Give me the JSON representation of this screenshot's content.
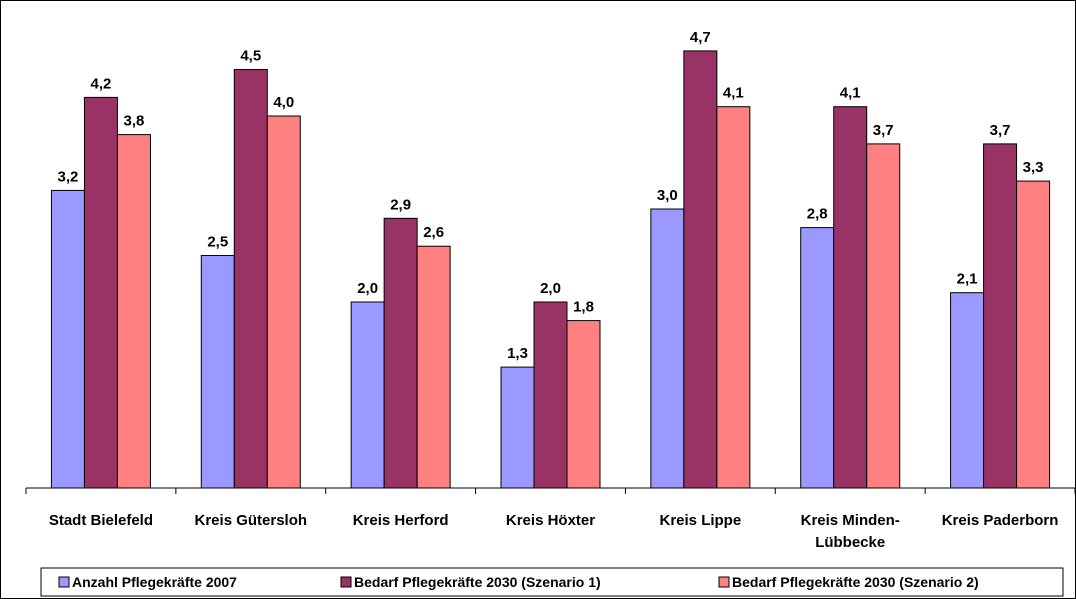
{
  "chart_data": {
    "type": "bar",
    "categories": [
      [
        "Stadt Bielefeld"
      ],
      [
        "Kreis Gütersloh"
      ],
      [
        "Kreis Herford"
      ],
      [
        "Kreis Höxter"
      ],
      [
        "Kreis Lippe"
      ],
      [
        "Kreis Minden-",
        "Lübbecke"
      ],
      [
        "Kreis Paderborn"
      ]
    ],
    "series": [
      {
        "name": "Anzahl Pflegekräfte 2007",
        "color": "#9999ff",
        "values": [
          3.2,
          2.5,
          2.0,
          1.3,
          3.0,
          2.8,
          2.1
        ],
        "labels": [
          "3,2",
          "2,5",
          "2,0",
          "1,3",
          "3,0",
          "2,8",
          "2,1"
        ]
      },
      {
        "name": "Bedarf Pflegekräfte 2030 (Szenario 1)",
        "color": "#993366",
        "values": [
          4.2,
          4.5,
          2.9,
          2.0,
          4.7,
          4.1,
          3.7
        ],
        "labels": [
          "4,2",
          "4,5",
          "2,9",
          "2,0",
          "4,7",
          "4,1",
          "3,7"
        ]
      },
      {
        "name": "Bedarf Pflegekräfte 2030 (Szenario 2)",
        "color": "#ff8080",
        "values": [
          3.8,
          4.0,
          2.6,
          1.8,
          4.1,
          3.7,
          3.3
        ],
        "labels": [
          "3,8",
          "4,0",
          "2,6",
          "1,8",
          "4,1",
          "3,7",
          "3,3"
        ]
      }
    ],
    "ylim": [
      0,
      5
    ],
    "grid": false,
    "legend_position": "bottom"
  }
}
